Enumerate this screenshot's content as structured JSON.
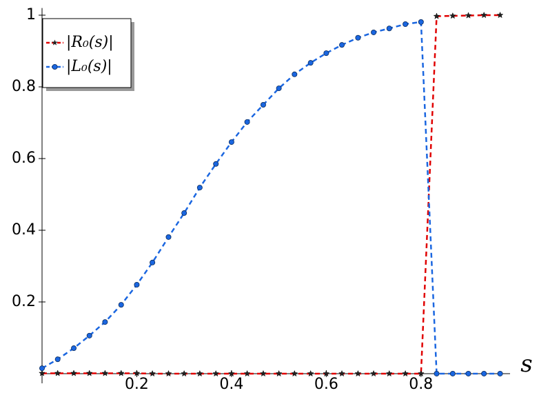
{
  "chart_data": {
    "type": "line",
    "x": [
      0,
      0.033,
      0.067,
      0.1,
      0.133,
      0.167,
      0.2,
      0.233,
      0.267,
      0.3,
      0.333,
      0.367,
      0.4,
      0.433,
      0.467,
      0.5,
      0.533,
      0.567,
      0.6,
      0.633,
      0.667,
      0.7,
      0.733,
      0.767,
      0.8,
      0.833,
      0.867,
      0.9,
      0.933,
      0.967
    ],
    "series": [
      {
        "name": "|R₀(s)|",
        "color": "#e00000",
        "marker": "star",
        "values": [
          0.001,
          0.001,
          0.001,
          0.001,
          0.001,
          0.001,
          0.001,
          0,
          0,
          0,
          0,
          0,
          0,
          0,
          0,
          0,
          0,
          0,
          0,
          0,
          0,
          0,
          0,
          0,
          0,
          0.997,
          0.998,
          0.999,
          1,
          1
        ]
      },
      {
        "name": "|L₀(s)|",
        "color": "#1a66e0",
        "marker": "circle",
        "values": [
          0.015,
          0.04,
          0.071,
          0.106,
          0.144,
          0.192,
          0.248,
          0.31,
          0.381,
          0.448,
          0.519,
          0.585,
          0.646,
          0.702,
          0.75,
          0.796,
          0.835,
          0.867,
          0.894,
          0.917,
          0.937,
          0.952,
          0.963,
          0.975,
          0.981,
          0,
          0,
          0,
          0,
          0
        ]
      }
    ],
    "x_label": "s",
    "xlim": [
      0,
      0.988
    ],
    "ylim": [
      -0.027,
      1.02
    ],
    "xticks": [
      0.2,
      0.4,
      0.6,
      0.8
    ],
    "yticks": [
      0.2,
      0.4,
      0.6,
      0.8,
      1
    ],
    "legend": "upper-left"
  }
}
